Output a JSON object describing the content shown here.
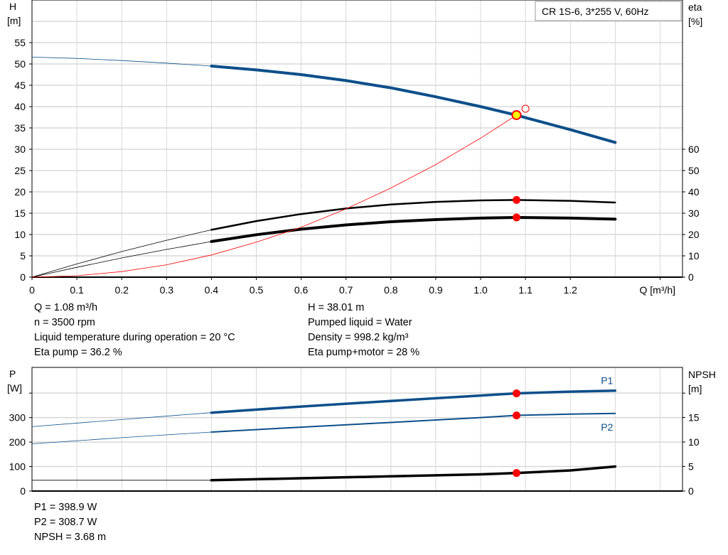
{
  "colors": {
    "head": "#0c4f8a",
    "eta": "#000000",
    "system": "#ff0000",
    "duty": "#ff0000",
    "duty_fill": "#ffff00",
    "grid": "#d8d8d8",
    "power": "#0c4f8a",
    "npsh": "#000000"
  },
  "chart_data": [
    {
      "type": "line",
      "legend_box": "CR 1S-6, 3*255 V, 60Hz",
      "xlabel": "Q [m³/h]",
      "ylabel_left": [
        "H",
        "[m]"
      ],
      "ylabel_right": [
        "eta",
        "[%]"
      ],
      "xlim": [
        0,
        1.45
      ],
      "ylim_left": [
        0,
        65
      ],
      "ylim_right": [
        0,
        130
      ],
      "x_ticks": [
        "0",
        "0.1",
        "0.2",
        "0.3",
        "0.4",
        "0.5",
        "0.6",
        "0.7",
        "0.8",
        "0.9",
        "1.0",
        "1.1",
        "1.2"
      ],
      "y_ticks_left": [
        "0",
        "5",
        "10",
        "15",
        "20",
        "25",
        "30",
        "35",
        "40",
        "45",
        "50",
        "55"
      ],
      "y_ticks_right": [
        "0",
        "10",
        "20",
        "30",
        "40",
        "50",
        "60"
      ],
      "grid": true,
      "series": [
        {
          "key": "head",
          "axis": "left",
          "x": [
            0,
            0.1,
            0.2,
            0.3,
            0.4,
            0.5,
            0.6,
            0.7,
            0.8,
            0.9,
            1.0,
            1.08,
            1.1,
            1.2,
            1.3
          ],
          "y": [
            51.6,
            51.3,
            50.8,
            50.2,
            49.5,
            48.6,
            47.5,
            46.1,
            44.4,
            42.3,
            40.0,
            38.0,
            37.4,
            34.6,
            31.6
          ],
          "thin_until": 0.4
        },
        {
          "key": "eta_pump",
          "axis": "right",
          "x": [
            0,
            0.1,
            0.2,
            0.3,
            0.4,
            0.5,
            0.6,
            0.7,
            0.8,
            0.9,
            1.0,
            1.08,
            1.2,
            1.3
          ],
          "y": [
            0,
            6.2,
            12,
            17.3,
            22.2,
            26.3,
            29.6,
            32.2,
            34.1,
            35.3,
            36,
            36.2,
            35.8,
            35
          ],
          "thin_until": 0.4
        },
        {
          "key": "eta_pump_motor",
          "axis": "right",
          "x": [
            0,
            0.1,
            0.2,
            0.3,
            0.4,
            0.5,
            0.6,
            0.7,
            0.8,
            0.9,
            1.0,
            1.08,
            1.2,
            1.3
          ],
          "y": [
            0,
            4.6,
            9,
            13,
            16.7,
            19.9,
            22.5,
            24.5,
            26,
            27,
            27.7,
            28,
            27.7,
            27.2
          ],
          "thin_until": 0.4
        },
        {
          "key": "system",
          "axis": "left",
          "x": [
            0,
            0.1,
            0.2,
            0.3,
            0.4,
            0.5,
            0.6,
            0.7,
            0.8,
            0.9,
            1.0,
            1.08
          ],
          "y": [
            0,
            0.33,
            1.3,
            2.9,
            5.2,
            8.2,
            11.7,
            16,
            20.9,
            26.4,
            32.6,
            38.0
          ]
        }
      ],
      "duty_point": {
        "x": 1.08,
        "y": 38.01,
        "eta_pump": 36.2,
        "eta_pump_motor": 28
      },
      "requested_point": {
        "x": 1.1,
        "y": 39.5
      }
    },
    {
      "type": "line",
      "ylabel_left": [
        "P",
        "[W]"
      ],
      "ylabel_right": [
        "NPSH",
        "[m]"
      ],
      "xlim": [
        0,
        1.45
      ],
      "ylim_left": [
        0,
        505
      ],
      "ylim_right": [
        0,
        25.2
      ],
      "y_ticks_left": [
        "0",
        "100",
        "200",
        "300"
      ],
      "y_ticks_right": [
        "0",
        "5",
        "10",
        "15"
      ],
      "grid": true,
      "series": [
        {
          "key": "P1",
          "name": "P1",
          "axis": "left",
          "x": [
            0,
            0.2,
            0.4,
            0.6,
            0.8,
            1.0,
            1.08,
            1.2,
            1.3
          ],
          "y": [
            263,
            292,
            320,
            345,
            368,
            390,
            399,
            406,
            410
          ],
          "thin_until": 0.4
        },
        {
          "key": "P2",
          "name": "P2",
          "axis": "left",
          "x": [
            0,
            0.2,
            0.4,
            0.6,
            0.8,
            1.0,
            1.08,
            1.2,
            1.3
          ],
          "y": [
            193,
            218,
            241,
            261,
            280,
            300,
            309,
            314,
            317
          ],
          "thin_until": 0.4
        },
        {
          "key": "NPSH",
          "axis": "right",
          "x": [
            0,
            0.4,
            0.6,
            0.8,
            1.0,
            1.08,
            1.2,
            1.3
          ],
          "y": [
            2.2,
            2.2,
            2.6,
            3.0,
            3.4,
            3.68,
            4.2,
            5.0
          ],
          "thin_until": 0.4
        }
      ],
      "duty_points": {
        "P1": 398.9,
        "P2": 308.7,
        "NPSH": 3.68
      }
    }
  ],
  "info_top": {
    "left": [
      "Q = 1.08 m³/h",
      "n = 3500 rpm",
      "Liquid temperature during operation = 20 °C",
      "Eta pump = 36.2 %"
    ],
    "right": [
      "H = 38.01 m",
      "Pumped liquid = Water",
      "Density = 998.2 kg/m³",
      "Eta pump+motor = 28 %"
    ]
  },
  "info_bottom": [
    "P1 = 398.9 W",
    "P2 = 308.7 W",
    "NPSH = 3.68 m"
  ]
}
